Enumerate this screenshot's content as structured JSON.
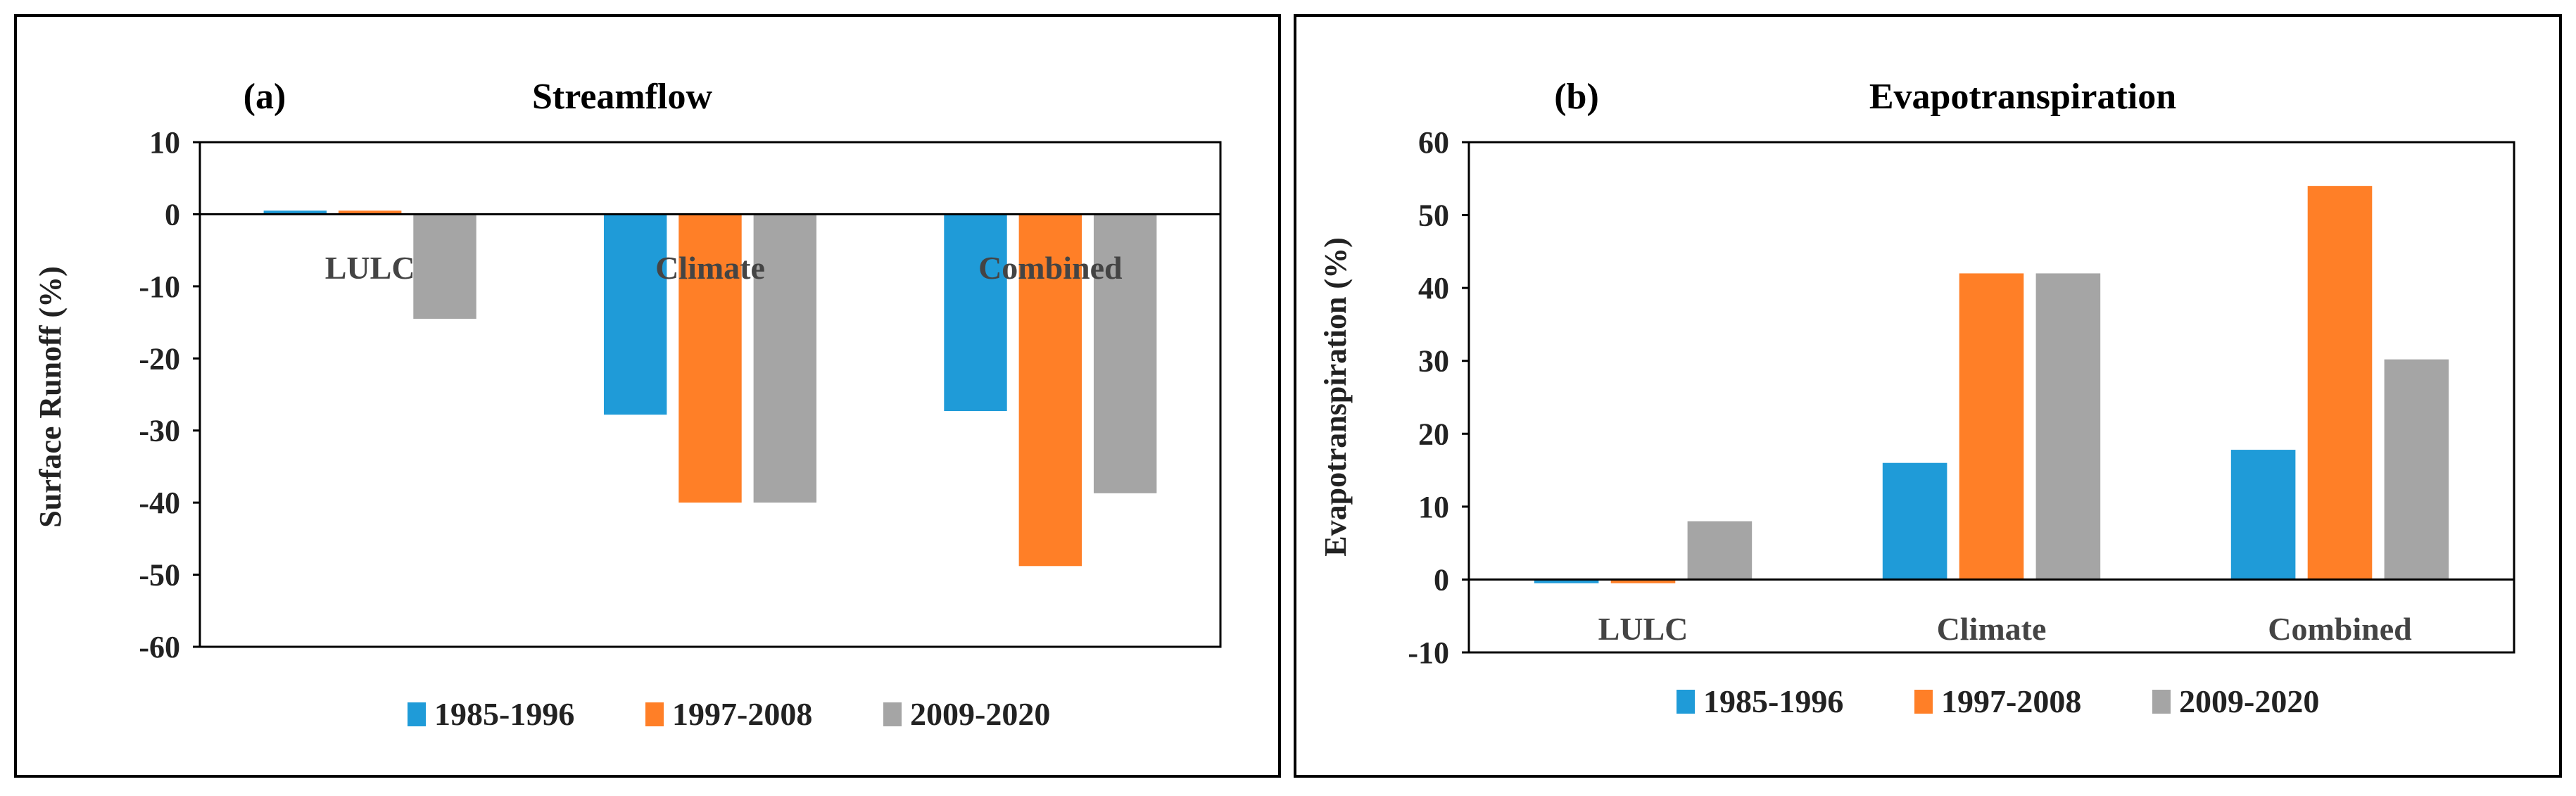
{
  "chart_data": [
    {
      "type": "bar",
      "panel_label": "(a)",
      "title": "Streamflow",
      "xlabel": "",
      "ylabel": "Surface Runoff  (%)",
      "ylim": [
        -60,
        10
      ],
      "yticks": [
        10,
        0,
        -10,
        -20,
        -30,
        -40,
        -50,
        -60
      ],
      "grid": false,
      "legend": "bottom",
      "categories": [
        "LULC",
        "Climate",
        "Combined"
      ],
      "series": [
        {
          "name": "1985-1996",
          "color": "#1f9bd8",
          "values": [
            0.5,
            -27.8,
            -27.3
          ]
        },
        {
          "name": "1997-2008",
          "color": "#ff7f27",
          "values": [
            0.5,
            -40.0,
            -48.8
          ]
        },
        {
          "name": "2009-2020",
          "color": "#a5a5a5",
          "values": [
            -14.5,
            -40.0,
            -38.7
          ]
        }
      ]
    },
    {
      "type": "bar",
      "panel_label": "(b)",
      "title": "Evapotranspiration",
      "xlabel": "",
      "ylabel": "Evapotranspiration  (%)",
      "ylim": [
        -10,
        60
      ],
      "yticks": [
        60,
        50,
        40,
        30,
        20,
        10,
        0,
        -10
      ],
      "grid": false,
      "legend": "bottom",
      "categories": [
        "LULC",
        "Climate",
        "Combined"
      ],
      "series": [
        {
          "name": "1985-1996",
          "color": "#1f9bd8",
          "values": [
            -0.5,
            16.0,
            17.8
          ]
        },
        {
          "name": "1997-2008",
          "color": "#ff7f27",
          "values": [
            -0.5,
            42.0,
            54.0
          ]
        },
        {
          "name": "2009-2020",
          "color": "#a5a5a5",
          "values": [
            8.0,
            42.0,
            30.2
          ]
        }
      ]
    }
  ]
}
